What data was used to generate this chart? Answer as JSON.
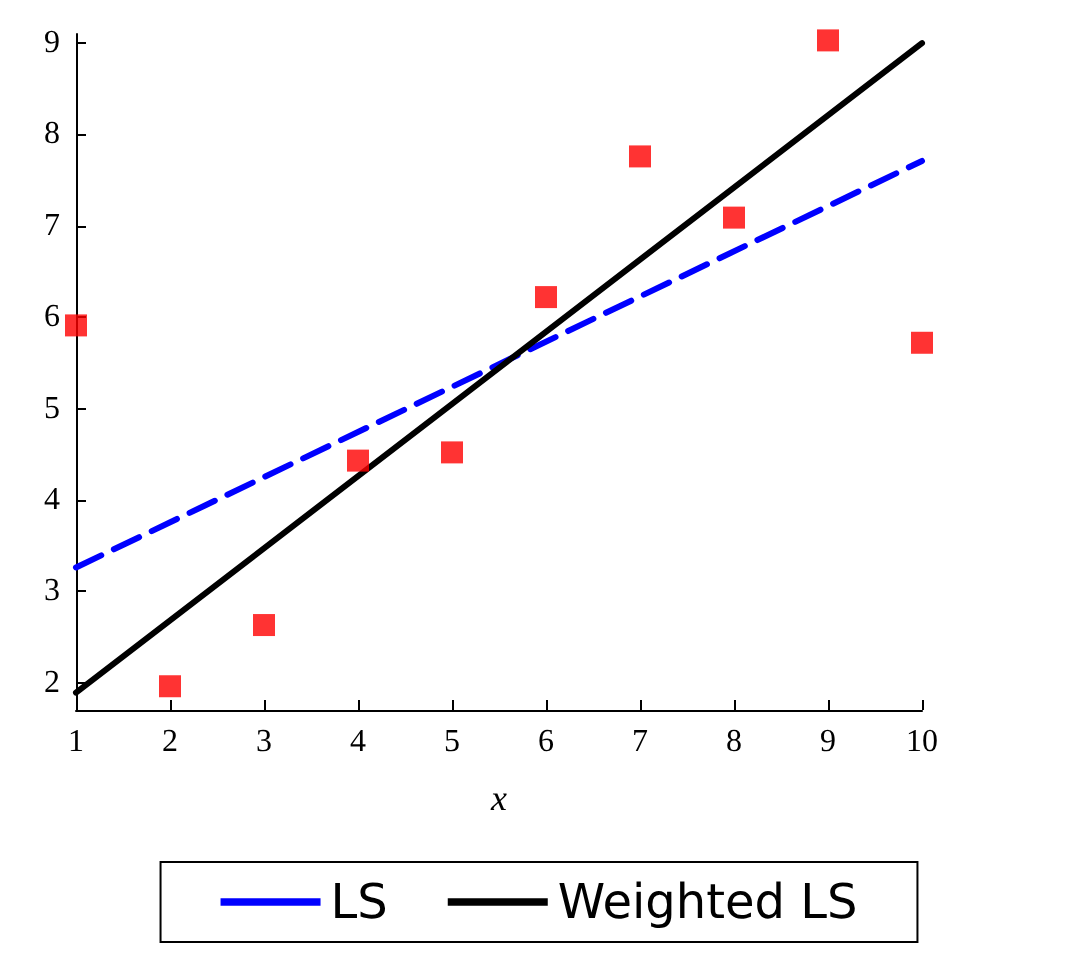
{
  "chart_data": {
    "type": "scatter",
    "xlabel": "x",
    "xlim": [
      1,
      10
    ],
    "xticks": [
      1,
      2,
      3,
      4,
      5,
      6,
      7,
      8,
      9,
      10
    ],
    "ylim": [
      1.7,
      9.1
    ],
    "yticks": [
      2,
      3,
      4,
      5,
      6,
      7,
      8,
      9
    ],
    "grid": false,
    "legend": "bottom",
    "marker": "square",
    "series": [
      {
        "color": "#ff0000",
        "x": [
          1,
          2,
          3,
          4,
          5,
          6,
          7,
          8,
          9,
          10
        ],
        "values": [
          5.91,
          1.96,
          2.63,
          4.43,
          4.52,
          6.22,
          7.76,
          7.09,
          9.03,
          5.72
        ]
      },
      {
        "type": "line",
        "name": "LS",
        "color": "#0000ff",
        "line_style": "dashed",
        "marker": "none",
        "x": [
          1,
          10
        ],
        "values": [
          3.26,
          7.71
        ]
      },
      {
        "type": "line",
        "name": "Weighted LS",
        "color": "#000000",
        "line_style": "solid",
        "marker": "none",
        "x": [
          1,
          10
        ],
        "values": [
          1.89,
          9.0
        ]
      }
    ]
  }
}
